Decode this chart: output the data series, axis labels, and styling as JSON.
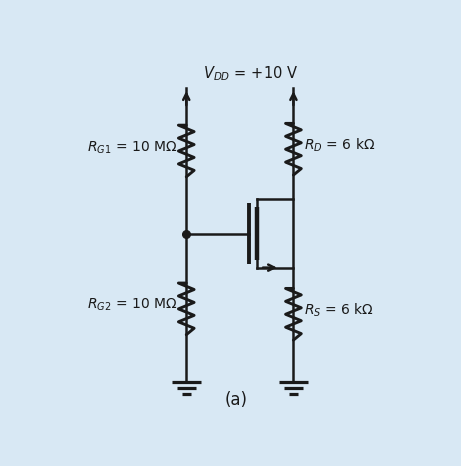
{
  "bg_color": "#d8e8f4",
  "line_color": "#1a1a1a",
  "text_color": "#1a1a1a",
  "title": "(a)",
  "vdd_label": "$V_{DD}$ = +10 V",
  "rg1_label": "$R_{G1}$ = 10 MΩ",
  "rg2_label": "$R_{G2}$ = 10 MΩ",
  "rd_label": "$R_D$ = 6 kΩ",
  "rs_label": "$R_S$ = 6 kΩ",
  "fig_width": 4.61,
  "fig_height": 4.66,
  "dpi": 100
}
